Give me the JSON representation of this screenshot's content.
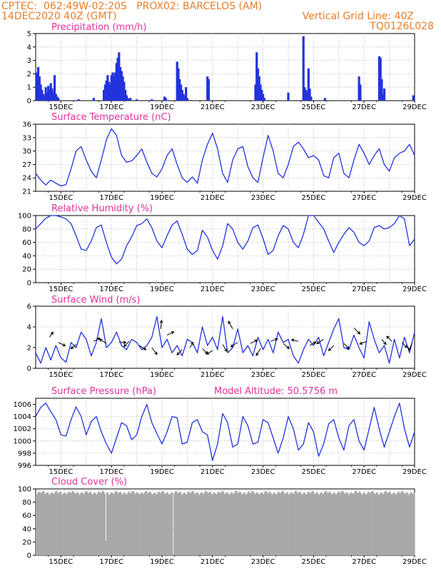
{
  "header": {
    "line1": "CPTEC:  062:49W-02:20S   PROX02: BARCELOS (AM)",
    "line2": "14DEC2020 40Z (GMT)",
    "grid_note": "Vertical Grid Line: 40Z",
    "code": "TQ0126L028",
    "color": "#e87e2a"
  },
  "colors": {
    "title": "#e0309a",
    "series": "#2233dd",
    "cloud": "#a9a9a9",
    "wind_arrow": "#000000"
  },
  "chart_data": [
    {
      "id": "precip",
      "type": "bar",
      "title": "Precipitation (mm/h)",
      "ylim": [
        0,
        5
      ],
      "yticks": [
        "0",
        "1",
        "2",
        "3",
        "4",
        "5"
      ],
      "xlim": [
        14,
        29
      ],
      "xtick_labels": [
        "15DEC",
        "17DEC",
        "19DEC",
        "21DEC",
        "23DEC",
        "25DEC",
        "27DEC",
        "29DEC"
      ],
      "x": [
        14.05,
        14.1,
        14.15,
        14.2,
        14.25,
        14.3,
        14.35,
        14.4,
        14.45,
        14.5,
        14.55,
        14.6,
        14.65,
        14.7,
        14.75,
        14.8,
        14.85,
        14.9,
        15.7,
        16.3,
        16.7,
        16.75,
        16.8,
        16.85,
        16.9,
        16.95,
        17.0,
        17.05,
        17.1,
        17.15,
        17.2,
        17.25,
        17.3,
        17.35,
        17.4,
        17.45,
        17.5,
        17.55,
        17.6,
        17.65,
        17.7,
        17.75,
        18.0,
        18.6,
        19.1,
        19.15,
        19.6,
        19.65,
        19.7,
        19.75,
        19.8,
        19.85,
        19.9,
        19.95,
        20.0,
        20.8,
        20.85,
        22.7,
        22.75,
        22.8,
        22.85,
        22.9,
        22.95,
        23.0,
        23.05,
        24.0,
        24.6,
        24.65,
        24.7,
        24.75,
        24.8,
        24.85,
        24.9,
        25.45,
        26.8,
        26.85,
        27.6,
        27.65,
        27.7,
        27.75,
        27.8,
        28.95
      ],
      "values": [
        2.1,
        2.5,
        1.8,
        1.2,
        0.8,
        0.5,
        0.3,
        1.0,
        0.6,
        1.1,
        0.8,
        1.3,
        0.9,
        0.6,
        1.9,
        0.5,
        0.3,
        0.2,
        0.1,
        0.2,
        0.8,
        1.2,
        1.5,
        1.9,
        1.4,
        1.2,
        1.9,
        2.1,
        1.8,
        2.1,
        2.8,
        3.2,
        3.6,
        2.5,
        2.2,
        1.8,
        1.4,
        0.8,
        0.4,
        0.2,
        0.1,
        0.2,
        0.1,
        0.1,
        0.3,
        0.2,
        2.9,
        2.4,
        1.6,
        1.2,
        0.8,
        0.5,
        0.3,
        1.0,
        0.2,
        1.8,
        1.6,
        1.2,
        3.6,
        2.4,
        1.8,
        1.2,
        0.8,
        0.5,
        0.2,
        0.6,
        4.8,
        1.0,
        0.8,
        0.6,
        2.4,
        0.9,
        0.3,
        0.2,
        1.8,
        1.2,
        3.3,
        3.2,
        1.6,
        0.5,
        0.9,
        0.4
      ]
    },
    {
      "id": "temp",
      "type": "line",
      "title": "Surface Temperature (nC)",
      "ylim": [
        21,
        36
      ],
      "yticks": [
        "21",
        "24",
        "27",
        "30",
        "33",
        "36"
      ],
      "xlim": [
        14,
        29
      ],
      "xtick_labels": [
        "15DEC",
        "17DEC",
        "19DEC",
        "21DEC",
        "23DEC",
        "25DEC",
        "27DEC",
        "29DEC"
      ],
      "x": [
        14.0,
        14.2,
        14.4,
        14.6,
        14.8,
        15.0,
        15.2,
        15.4,
        15.6,
        15.8,
        16.0,
        16.2,
        16.4,
        16.6,
        16.8,
        17.0,
        17.2,
        17.4,
        17.6,
        17.8,
        18.0,
        18.2,
        18.4,
        18.6,
        18.8,
        19.0,
        19.2,
        19.4,
        19.6,
        19.8,
        20.0,
        20.2,
        20.4,
        20.6,
        20.8,
        21.0,
        21.2,
        21.4,
        21.6,
        21.8,
        22.0,
        22.2,
        22.4,
        22.6,
        22.8,
        23.0,
        23.2,
        23.4,
        23.6,
        23.8,
        24.0,
        24.2,
        24.4,
        24.6,
        24.8,
        25.0,
        25.2,
        25.4,
        25.6,
        25.8,
        26.0,
        26.2,
        26.4,
        26.6,
        26.8,
        27.0,
        27.2,
        27.4,
        27.6,
        27.8,
        28.0,
        28.2,
        28.4,
        28.6,
        28.8,
        29.0
      ],
      "values": [
        25.0,
        23.5,
        22.4,
        23.5,
        22.8,
        22.2,
        22.5,
        26.0,
        30.0,
        31.0,
        28.0,
        25.5,
        24.0,
        28.0,
        32.5,
        35.0,
        33.5,
        29.0,
        27.5,
        27.8,
        29.0,
        30.5,
        27.5,
        25.0,
        24.2,
        26.0,
        29.0,
        30.5,
        27.0,
        24.0,
        23.0,
        24.2,
        22.8,
        28.0,
        31.5,
        34.0,
        30.5,
        25.0,
        23.0,
        28.0,
        30.5,
        31.0,
        26.5,
        24.0,
        23.0,
        28.5,
        33.5,
        30.0,
        25.0,
        24.0,
        27.0,
        31.0,
        32.0,
        30.5,
        28.5,
        29.0,
        28.0,
        24.5,
        24.0,
        28.5,
        29.5,
        25.0,
        24.0,
        28.0,
        31.5,
        29.5,
        27.0,
        29.0,
        30.5,
        27.0,
        25.5,
        28.5,
        29.5,
        30.0,
        31.5,
        29.0
      ]
    },
    {
      "id": "rh",
      "type": "line",
      "title": "Relative Humidity (%)",
      "ylim": [
        0,
        100
      ],
      "yticks": [
        "0",
        "20",
        "40",
        "60",
        "80",
        "100"
      ],
      "xlim": [
        14,
        29
      ],
      "xtick_labels": [
        "15DEC",
        "17DEC",
        "19DEC",
        "21DEC",
        "23DEC",
        "25DEC",
        "27DEC",
        "29DEC"
      ],
      "x": [
        14.0,
        14.2,
        14.4,
        14.6,
        14.8,
        15.0,
        15.2,
        15.4,
        15.6,
        15.8,
        16.0,
        16.2,
        16.4,
        16.6,
        16.8,
        17.0,
        17.2,
        17.4,
        17.6,
        17.8,
        18.0,
        18.2,
        18.4,
        18.6,
        18.8,
        19.0,
        19.2,
        19.4,
        19.6,
        19.8,
        20.0,
        20.2,
        20.4,
        20.6,
        20.8,
        21.0,
        21.2,
        21.4,
        21.6,
        21.8,
        22.0,
        22.2,
        22.4,
        22.6,
        22.8,
        23.0,
        23.2,
        23.4,
        23.6,
        23.8,
        24.0,
        24.2,
        24.4,
        24.6,
        24.8,
        25.0,
        25.2,
        25.4,
        25.6,
        25.8,
        26.0,
        26.2,
        26.4,
        26.6,
        26.8,
        27.0,
        27.2,
        27.4,
        27.6,
        27.8,
        28.0,
        28.2,
        28.4,
        28.6,
        28.8,
        29.0
      ],
      "values": [
        80,
        88,
        96,
        100,
        100,
        98,
        95,
        88,
        70,
        50,
        48,
        62,
        82,
        86,
        60,
        38,
        28,
        35,
        55,
        68,
        85,
        88,
        95,
        82,
        62,
        52,
        70,
        86,
        92,
        72,
        50,
        42,
        48,
        78,
        68,
        48,
        35,
        55,
        88,
        80,
        60,
        50,
        62,
        82,
        86,
        66,
        42,
        48,
        70,
        85,
        80,
        60,
        52,
        72,
        100,
        100,
        90,
        80,
        62,
        45,
        60,
        72,
        82,
        75,
        60,
        55,
        62,
        82,
        85,
        80,
        82,
        88,
        100,
        95,
        55,
        65
      ]
    },
    {
      "id": "wind",
      "type": "line",
      "title": "Surface Wind (m/s)",
      "ylim": [
        0,
        6
      ],
      "yticks": [
        "0",
        "2",
        "4",
        "6"
      ],
      "xlim": [
        14,
        29
      ],
      "xtick_labels": [
        "15DEC",
        "17DEC",
        "19DEC",
        "21DEC",
        "23DEC",
        "25DEC",
        "27DEC",
        "29DEC"
      ],
      "x": [
        14.0,
        14.2,
        14.4,
        14.6,
        14.8,
        15.0,
        15.2,
        15.4,
        15.6,
        15.8,
        16.0,
        16.2,
        16.4,
        16.6,
        16.8,
        17.0,
        17.2,
        17.4,
        17.6,
        17.8,
        18.0,
        18.2,
        18.4,
        18.6,
        18.8,
        19.0,
        19.2,
        19.4,
        19.6,
        19.8,
        20.0,
        20.2,
        20.4,
        20.6,
        20.8,
        21.0,
        21.2,
        21.4,
        21.6,
        21.8,
        22.0,
        22.2,
        22.4,
        22.6,
        22.8,
        23.0,
        23.2,
        23.4,
        23.6,
        23.8,
        24.0,
        24.2,
        24.4,
        24.6,
        24.8,
        25.0,
        25.2,
        25.4,
        25.6,
        25.8,
        26.0,
        26.2,
        26.4,
        26.6,
        26.8,
        27.0,
        27.2,
        27.4,
        27.6,
        27.8,
        28.0,
        28.2,
        28.4,
        28.6,
        28.8,
        29.0
      ],
      "values": [
        1.5,
        0.5,
        2.0,
        0.8,
        2.2,
        1.0,
        0.6,
        2.5,
        2.0,
        3.5,
        2.8,
        1.2,
        2.5,
        4.8,
        2.0,
        2.5,
        3.5,
        2.2,
        1.8,
        2.8,
        2.5,
        1.8,
        2.2,
        3.0,
        5.0,
        2.0,
        2.8,
        1.5,
        2.2,
        1.2,
        2.8,
        2.5,
        1.5,
        4.0,
        2.2,
        3.0,
        1.8,
        5.0,
        1.5,
        2.0,
        3.8,
        1.5,
        2.2,
        1.2,
        3.0,
        1.8,
        2.8,
        1.5,
        3.5,
        2.5,
        2.8,
        1.2,
        0.5,
        1.8,
        2.8,
        2.2,
        3.0,
        1.2,
        2.5,
        3.8,
        4.8,
        2.0,
        1.8,
        3.2,
        2.0,
        1.0,
        4.5,
        2.8,
        1.5,
        2.2,
        0.5,
        2.8,
        1.0,
        3.0,
        1.5,
        3.5
      ],
      "arrows": [
        {
          "x": 14.55,
          "y": 3.0,
          "u": 0.4,
          "v": 0.6
        },
        {
          "x": 14.9,
          "y": 2.5,
          "u": 0.8,
          "v": -0.4
        },
        {
          "x": 15.6,
          "y": 2.3,
          "u": -0.6,
          "v": -0.5
        },
        {
          "x": 16.3,
          "y": 2.6,
          "u": 0.7,
          "v": 0.4
        },
        {
          "x": 16.8,
          "y": 2.4,
          "u": -0.8,
          "v": 0.5
        },
        {
          "x": 17.3,
          "y": 2.5,
          "u": 0.8,
          "v": 0.0
        },
        {
          "x": 17.7,
          "y": 2.6,
          "u": -0.6,
          "v": -0.6
        },
        {
          "x": 18.1,
          "y": 2.2,
          "u": 0.8,
          "v": -0.5
        },
        {
          "x": 18.6,
          "y": 2.0,
          "u": 0.6,
          "v": -0.8
        },
        {
          "x": 18.95,
          "y": 3.8,
          "u": 0.1,
          "v": 1.0
        },
        {
          "x": 19.2,
          "y": 3.2,
          "u": 0.8,
          "v": 0.4
        },
        {
          "x": 19.8,
          "y": 1.8,
          "u": -0.6,
          "v": -0.6
        },
        {
          "x": 20.1,
          "y": 2.0,
          "u": 0.4,
          "v": 0.6
        },
        {
          "x": 20.6,
          "y": 1.9,
          "u": 0.6,
          "v": -0.6
        },
        {
          "x": 21.0,
          "y": 1.7,
          "u": -0.7,
          "v": -0.4
        },
        {
          "x": 21.4,
          "y": 2.3,
          "u": 0.5,
          "v": -0.8
        },
        {
          "x": 21.8,
          "y": 3.8,
          "u": -0.5,
          "v": 0.9
        },
        {
          "x": 22.0,
          "y": 2.5,
          "u": -0.8,
          "v": -0.5
        },
        {
          "x": 22.5,
          "y": 2.4,
          "u": 0.8,
          "v": 0.4
        },
        {
          "x": 22.9,
          "y": 1.9,
          "u": -0.5,
          "v": -0.8
        },
        {
          "x": 23.3,
          "y": 2.6,
          "u": 0.8,
          "v": 0.3
        },
        {
          "x": 23.8,
          "y": 2.4,
          "u": 0.7,
          "v": -0.6
        },
        {
          "x": 24.4,
          "y": 2.6,
          "u": -0.8,
          "v": 0.2
        },
        {
          "x": 24.85,
          "y": 2.2,
          "u": 0.7,
          "v": 0.4
        },
        {
          "x": 25.4,
          "y": 2.8,
          "u": -0.8,
          "v": -0.5
        },
        {
          "x": 25.8,
          "y": 2.2,
          "u": -0.6,
          "v": -0.6
        },
        {
          "x": 26.2,
          "y": 2.4,
          "u": 0.6,
          "v": -0.6
        },
        {
          "x": 26.6,
          "y": 3.9,
          "u": 0.7,
          "v": -0.7
        },
        {
          "x": 27.1,
          "y": 2.6,
          "u": -0.8,
          "v": -0.3
        },
        {
          "x": 27.7,
          "y": 2.8,
          "u": 0.5,
          "v": -0.6
        },
        {
          "x": 28.1,
          "y": 2.6,
          "u": -0.6,
          "v": 0.6
        },
        {
          "x": 28.5,
          "y": 2.5,
          "u": 0.6,
          "v": -0.6
        },
        {
          "x": 28.9,
          "y": 2.4,
          "u": -0.4,
          "v": -0.8
        }
      ]
    },
    {
      "id": "pres",
      "type": "line",
      "title": "Surface Pressure (hPa)",
      "annotation": "Model Altitude: 50.5756 m",
      "ylim": [
        996,
        1007
      ],
      "yticks": [
        "996",
        "998",
        "1000",
        "1002",
        "1004",
        "1006"
      ],
      "xlim": [
        14,
        29
      ],
      "xtick_labels": [
        "15DEC",
        "17DEC",
        "19DEC",
        "21DEC",
        "23DEC",
        "25DEC",
        "27DEC",
        "29DEC"
      ],
      "x": [
        14.0,
        14.2,
        14.4,
        14.6,
        14.8,
        15.0,
        15.2,
        15.4,
        15.6,
        15.8,
        16.0,
        16.2,
        16.4,
        16.6,
        16.8,
        17.0,
        17.2,
        17.4,
        17.6,
        17.8,
        18.0,
        18.2,
        18.4,
        18.6,
        18.8,
        19.0,
        19.2,
        19.4,
        19.6,
        19.8,
        20.0,
        20.2,
        20.4,
        20.6,
        20.8,
        21.0,
        21.2,
        21.4,
        21.6,
        21.8,
        22.0,
        22.2,
        22.4,
        22.6,
        22.8,
        23.0,
        23.2,
        23.4,
        23.6,
        23.8,
        24.0,
        24.2,
        24.4,
        24.6,
        24.8,
        25.0,
        25.2,
        25.4,
        25.6,
        25.8,
        26.0,
        26.2,
        26.4,
        26.6,
        26.8,
        27.0,
        27.2,
        27.4,
        27.6,
        27.8,
        28.0,
        28.2,
        28.4,
        28.6,
        28.8,
        29.0
      ],
      "values": [
        1004.0,
        1005.5,
        1006.2,
        1004.8,
        1003.5,
        1001.0,
        1000.8,
        1003.5,
        1005.6,
        1004.0,
        1001.0,
        1003.2,
        1004.0,
        1001.5,
        999.5,
        998.0,
        1000.5,
        1003.0,
        1002.5,
        1000.2,
        1001.0,
        1004.0,
        1006.0,
        1003.0,
        1001.2,
        999.5,
        1001.5,
        1004.0,
        1003.8,
        999.5,
        999.8,
        1003.0,
        1003.5,
        1001.5,
        1001.0,
        996.8,
        999.5,
        1004.5,
        1003.0,
        999.0,
        999.5,
        1004.0,
        1002.5,
        999.5,
        999.8,
        1003.5,
        1003.0,
        1000.5,
        998.0,
        1000.5,
        1004.0,
        1002.0,
        998.5,
        999.5,
        1003.0,
        1001.5,
        997.5,
        999.5,
        1002.8,
        1003.5,
        1000.5,
        998.5,
        1002.5,
        1003.5,
        1000.0,
        998.5,
        1002.0,
        1005.5,
        1002.0,
        999.0,
        1001.5,
        1004.0,
        1006.2,
        1002.0,
        999.0,
        1001.5
      ]
    },
    {
      "id": "cloud",
      "type": "bar",
      "title": "Cloud Cover (%)",
      "ylim": [
        0,
        100
      ],
      "yticks": [
        "0",
        "20",
        "40",
        "60",
        "80",
        "100"
      ],
      "xlim": [
        14,
        29
      ],
      "xtick_labels": [
        "15DEC",
        "17DEC",
        "19DEC",
        "21DEC",
        "23DEC",
        "25DEC",
        "27DEC",
        "29DEC"
      ],
      "base": 96,
      "dips": [
        {
          "x": 16.75,
          "value": 22
        },
        {
          "x": 19.45,
          "value": 0
        }
      ]
    }
  ]
}
